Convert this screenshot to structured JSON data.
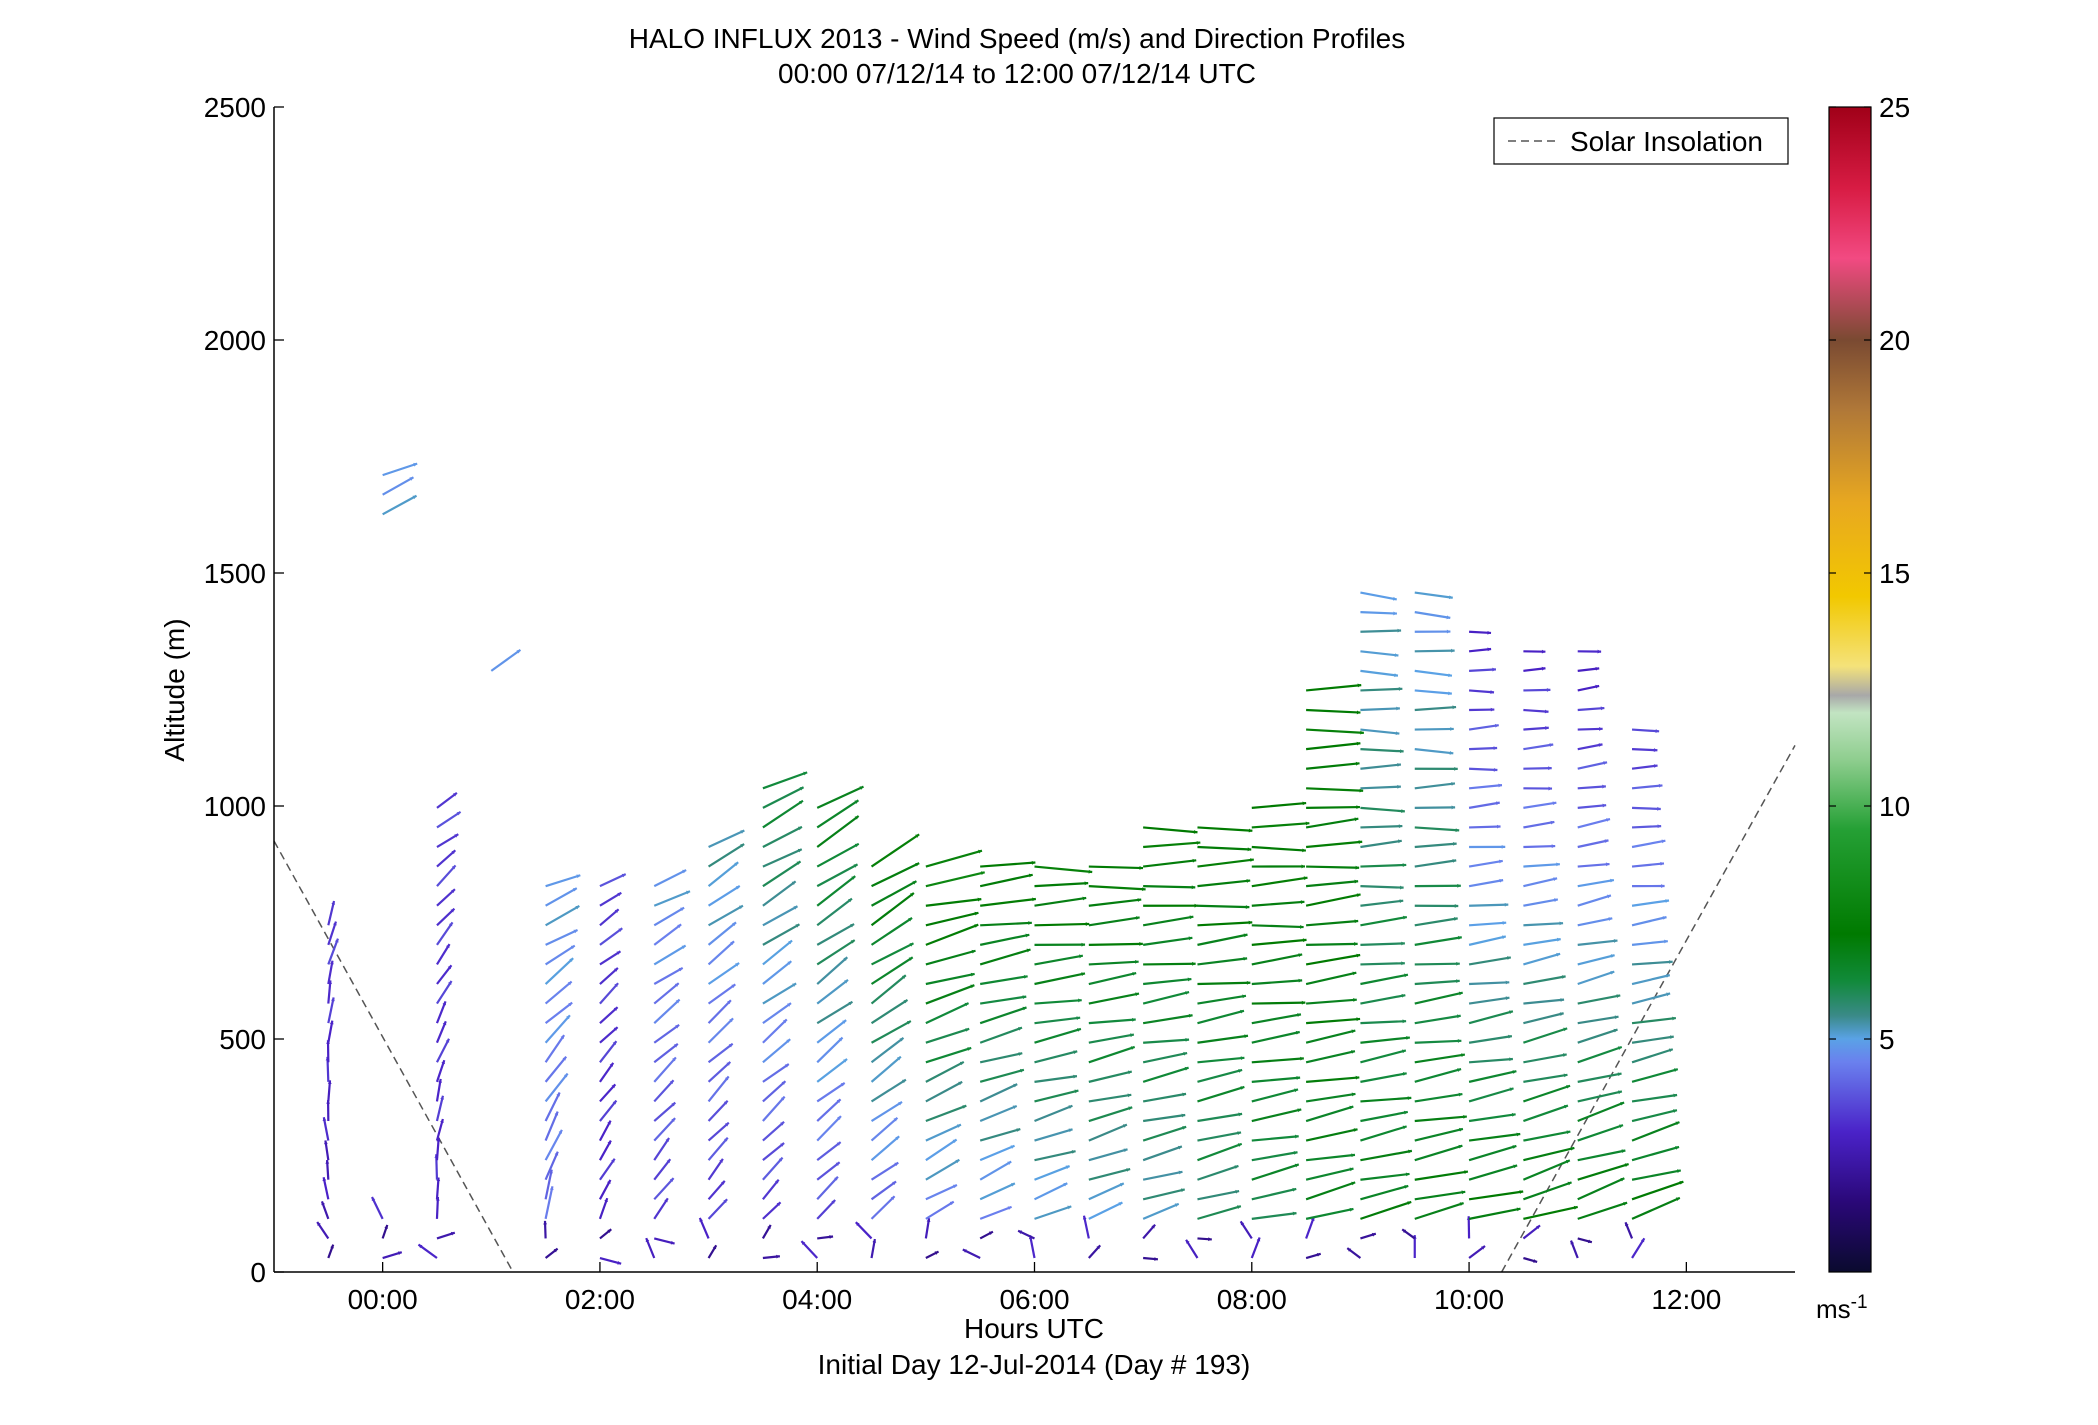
{
  "chart_data": {
    "type": "quiver",
    "title": "HALO INFLUX 2013 - Wind Speed (m/s) and Direction Profiles",
    "subtitle": "00:00 07/12/14 to 12:00 07/12/14  UTC",
    "xlabel": "Hours UTC",
    "xlabel2": "Initial Day 12-Jul-2014 (Day # 193)",
    "ylabel": "Altitude (m)",
    "xlim": [
      -1,
      13
    ],
    "ylim": [
      0,
      2500
    ],
    "xticks": [
      0,
      2,
      4,
      6,
      8,
      10,
      12
    ],
    "xticklabels": [
      "00:00",
      "02:00",
      "04:00",
      "06:00",
      "08:00",
      "10:00",
      "12:00"
    ],
    "yticks": [
      0,
      500,
      1000,
      1500,
      2000,
      2500
    ],
    "yticklabels": [
      "0",
      "500",
      "1000",
      "1500",
      "2000",
      "2500"
    ],
    "legend": {
      "label": "Solar Insolation",
      "placement": "top-right"
    },
    "colorbar": {
      "range": [
        0,
        25
      ],
      "ticks": [
        5,
        10,
        15,
        20,
        25
      ],
      "ticklabels": [
        "5",
        "10",
        "15",
        "20",
        "25"
      ],
      "unit_base": "ms",
      "unit_exp": "-1"
    },
    "solar_insolation": [
      [
        -1,
        925
      ],
      [
        1.2,
        0
      ],
      [
        10.3,
        0
      ],
      [
        13,
        1130
      ]
    ],
    "profile_times": [
      -0.5,
      0,
      0.5,
      1,
      1.5,
      2,
      2.5,
      3,
      3.5,
      4,
      4.5,
      5,
      5.5,
      6,
      6.5,
      7,
      7.5,
      8,
      8.5,
      9,
      9.5,
      10,
      10.5,
      11,
      11.5
    ],
    "profile_tops": [
      760,
      1740,
      1010,
      1300,
      840,
      840,
      860,
      940,
      1070,
      1020,
      900,
      880,
      870,
      890,
      900,
      970,
      980,
      1020,
      1270,
      1470,
      1470,
      1380,
      1340,
      1340,
      1200
    ],
    "profile_bottoms": [
      0,
      0,
      0,
      0,
      0,
      0,
      0,
      0,
      0,
      0,
      0,
      0,
      0,
      0,
      0,
      0,
      0,
      0,
      0,
      0,
      0,
      0,
      0,
      0,
      0
    ],
    "profile_gaps": [
      [
        0,
        0
      ],
      [
        120,
        1590
      ],
      [
        0,
        0
      ],
      [
        0,
        1250
      ],
      [
        0,
        0
      ],
      [
        0,
        0
      ],
      [
        0,
        0
      ],
      [
        0,
        0
      ],
      [
        0,
        0
      ],
      [
        0,
        0
      ],
      [
        0,
        0
      ],
      [
        0,
        0
      ],
      [
        0,
        0
      ],
      [
        0,
        0
      ],
      [
        0,
        0
      ],
      [
        0,
        0
      ],
      [
        0,
        0
      ],
      [
        0,
        0
      ],
      [
        0,
        0
      ],
      [
        0,
        0
      ],
      [
        0,
        0
      ],
      [
        0,
        0
      ],
      [
        0,
        0
      ],
      [
        0,
        0
      ],
      [
        0,
        0
      ]
    ],
    "profile_speed_low": [
      2.5,
      2.8,
      3.0,
      3.5,
      4.0,
      3.0,
      3.2,
      3.0,
      3.0,
      3.2,
      3.5,
      4.0,
      4.2,
      4.5,
      4.8,
      5.0,
      5.5,
      6.0,
      6.5,
      7.0,
      7.2,
      7.5,
      7.5,
      7.5,
      7.5
    ],
    "profile_speed_high": [
      3.5,
      5.0,
      3.5,
      4.5,
      5.0,
      3.5,
      5.0,
      5.5,
      6.5,
      7.0,
      7.5,
      8.0,
      7.5,
      7.5,
      7.5,
      7.5,
      7.5,
      7.5,
      7.5,
      5.0,
      4.8,
      3.0,
      3.0,
      2.8,
      3.2
    ],
    "profile_dir_low": [
      160,
      150,
      170,
      165,
      185,
      200,
      210,
      215,
      220,
      225,
      230,
      235,
      240,
      245,
      245,
      250,
      250,
      255,
      255,
      255,
      255,
      255,
      250,
      250,
      250
    ],
    "profile_dir_high": [
      200,
      250,
      240,
      240,
      250,
      240,
      245,
      240,
      245,
      240,
      240,
      260,
      265,
      270,
      270,
      270,
      270,
      270,
      270,
      275,
      275,
      270,
      270,
      265,
      270
    ],
    "near_surface_speed": 2.5
  }
}
